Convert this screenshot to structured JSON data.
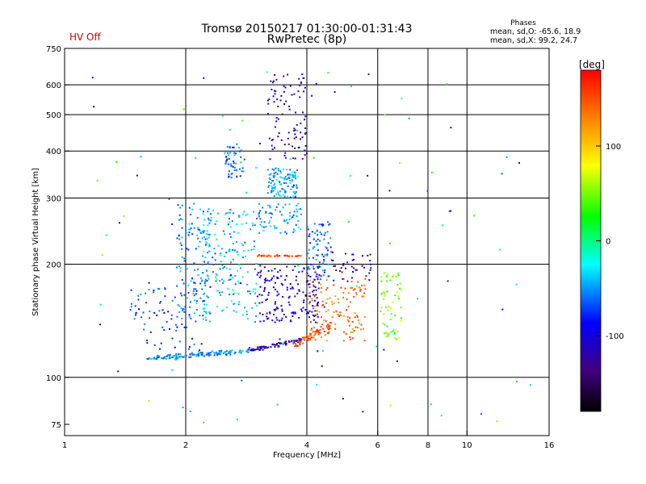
{
  "header": {
    "title": "Tromsø 20150217 01:30:00-01:31:43",
    "subtitle": "RwPretec (8p)",
    "status": "HV Off",
    "status_color": "#d40000",
    "stats_title": "Phases",
    "stats_o": "mean, sd,O: -65.6, 18.9",
    "stats_x": "mean, sd,X:  99.2, 24.7"
  },
  "chart_data": {
    "type": "scatter",
    "xlabel": "Frequency [MHz]",
    "ylabel": "Stationary phase Virtual Height [km]",
    "x_scale": "log",
    "y_scale": "log",
    "xlim": [
      1,
      16
    ],
    "ylim": [
      70,
      750
    ],
    "x_ticks": [
      1,
      2,
      4,
      6,
      8,
      10,
      16
    ],
    "x_gridlines": [
      2,
      4,
      6,
      8,
      10
    ],
    "y_ticks": [
      75,
      100,
      200,
      300,
      400,
      500,
      600,
      750
    ],
    "y_gridlines": [
      100,
      200,
      300,
      400,
      500,
      600
    ],
    "colorbar": {
      "label": "[deg]",
      "range": [
        -180,
        180
      ],
      "ticks": [
        100,
        0,
        -100
      ],
      "colors": [
        "#ff0000",
        "#ff8000",
        "#ffff00",
        "#00ff00",
        "#00ffff",
        "#0000ff",
        "#400080",
        "#000000"
      ]
    },
    "clusters": [
      {
        "x": [
          1.6,
          2.9
        ],
        "y": [
          112,
          122
        ],
        "phase": -55,
        "n": 150,
        "shape": "trace",
        "slope": 0.6
      },
      {
        "x": [
          2.9,
          3.9
        ],
        "y": [
          118,
          128
        ],
        "phase": -115,
        "n": 80,
        "shape": "trace",
        "slope": 0.8
      },
      {
        "x": [
          3.7,
          4.6
        ],
        "y": [
          121,
          140
        ],
        "phase": 150,
        "n": 60,
        "shape": "trace",
        "slope": 0.9
      },
      {
        "x": [
          4.0,
          5.6
        ],
        "y": [
          125,
          185
        ],
        "phase": 140,
        "n": 140,
        "shape": "blob"
      },
      {
        "x": [
          6.1,
          6.9
        ],
        "y": [
          125,
          190
        ],
        "phase": 50,
        "n": 60,
        "shape": "blob"
      },
      {
        "x": [
          1.45,
          2.2
        ],
        "y": [
          118,
          180
        ],
        "phase": -70,
        "n": 80,
        "shape": "blob"
      },
      {
        "x": [
          1.9,
          2.3
        ],
        "y": [
          140,
          290
        ],
        "phase": -55,
        "n": 130,
        "shape": "blob"
      },
      {
        "x": [
          2.2,
          3.0
        ],
        "y": [
          140,
          280
        ],
        "phase": -45,
        "n": 180,
        "shape": "blob"
      },
      {
        "x": [
          3.0,
          4.3
        ],
        "y": [
          140,
          200
        ],
        "phase": -105,
        "n": 170,
        "shape": "blob"
      },
      {
        "x": [
          3.0,
          3.9
        ],
        "y": [
          240,
          290
        ],
        "phase": -50,
        "n": 70,
        "shape": "blob"
      },
      {
        "x": [
          3.2,
          3.8
        ],
        "y": [
          300,
          360
        ],
        "phase": -45,
        "n": 110,
        "shape": "blob"
      },
      {
        "x": [
          3.2,
          4.0
        ],
        "y": [
          380,
          640
        ],
        "phase": -120,
        "n": 90,
        "shape": "blob"
      },
      {
        "x": [
          2.5,
          2.8
        ],
        "y": [
          340,
          420
        ],
        "phase": -60,
        "n": 50,
        "shape": "blob"
      },
      {
        "x": [
          4.0,
          4.6
        ],
        "y": [
          180,
          260
        ],
        "phase": -60,
        "n": 80,
        "shape": "blob"
      },
      {
        "x": [
          3.0,
          3.9
        ],
        "y": [
          210,
          216
        ],
        "phase": 150,
        "n": 35,
        "shape": "trace",
        "slope": 0
      },
      {
        "x": [
          4.6,
          5.8
        ],
        "y": [
          180,
          215
        ],
        "phase": -115,
        "n": 40,
        "shape": "blob"
      },
      {
        "x": [
          1.1,
          16.0
        ],
        "y": [
          75,
          650
        ],
        "phase": -40,
        "n": 110,
        "shape": "sparse"
      }
    ]
  }
}
